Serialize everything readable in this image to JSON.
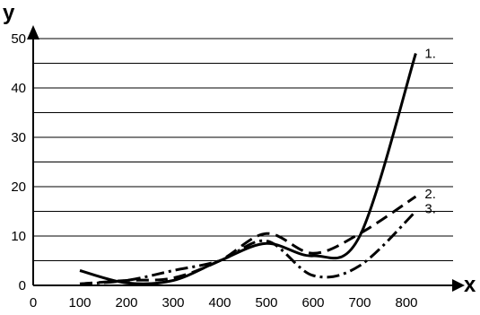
{
  "chart_data": {
    "type": "line",
    "xlabel": "x",
    "ylabel": "y",
    "xlim": [
      0,
      900
    ],
    "ylim": [
      0,
      50
    ],
    "x_ticks": [
      "0",
      "100",
      "200",
      "300",
      "400",
      "500",
      "600",
      "700",
      "800"
    ],
    "y_ticks": [
      "0",
      "10",
      "20",
      "30",
      "40",
      "50"
    ],
    "grid": "horizontal lines every 5",
    "legend": "labels at end of each line",
    "series": [
      {
        "name": "1.",
        "style": "solid",
        "points": [
          [
            100,
            3
          ],
          [
            200,
            0.5
          ],
          [
            300,
            1
          ],
          [
            400,
            5
          ],
          [
            500,
            8.5
          ],
          [
            600,
            6
          ],
          [
            700,
            10
          ],
          [
            820,
            47
          ]
        ]
      },
      {
        "name": "2.",
        "style": "dashed",
        "points": [
          [
            100,
            0.3
          ],
          [
            200,
            1
          ],
          [
            300,
            1.5
          ],
          [
            400,
            5
          ],
          [
            500,
            10.5
          ],
          [
            600,
            6.5
          ],
          [
            700,
            10.5
          ],
          [
            820,
            18
          ]
        ]
      },
      {
        "name": "3.",
        "style": "dash-dot",
        "points": [
          [
            100,
            0.3
          ],
          [
            200,
            1
          ],
          [
            300,
            3
          ],
          [
            400,
            5
          ],
          [
            500,
            9
          ],
          [
            600,
            2
          ],
          [
            700,
            4
          ],
          [
            820,
            15
          ]
        ]
      }
    ]
  }
}
